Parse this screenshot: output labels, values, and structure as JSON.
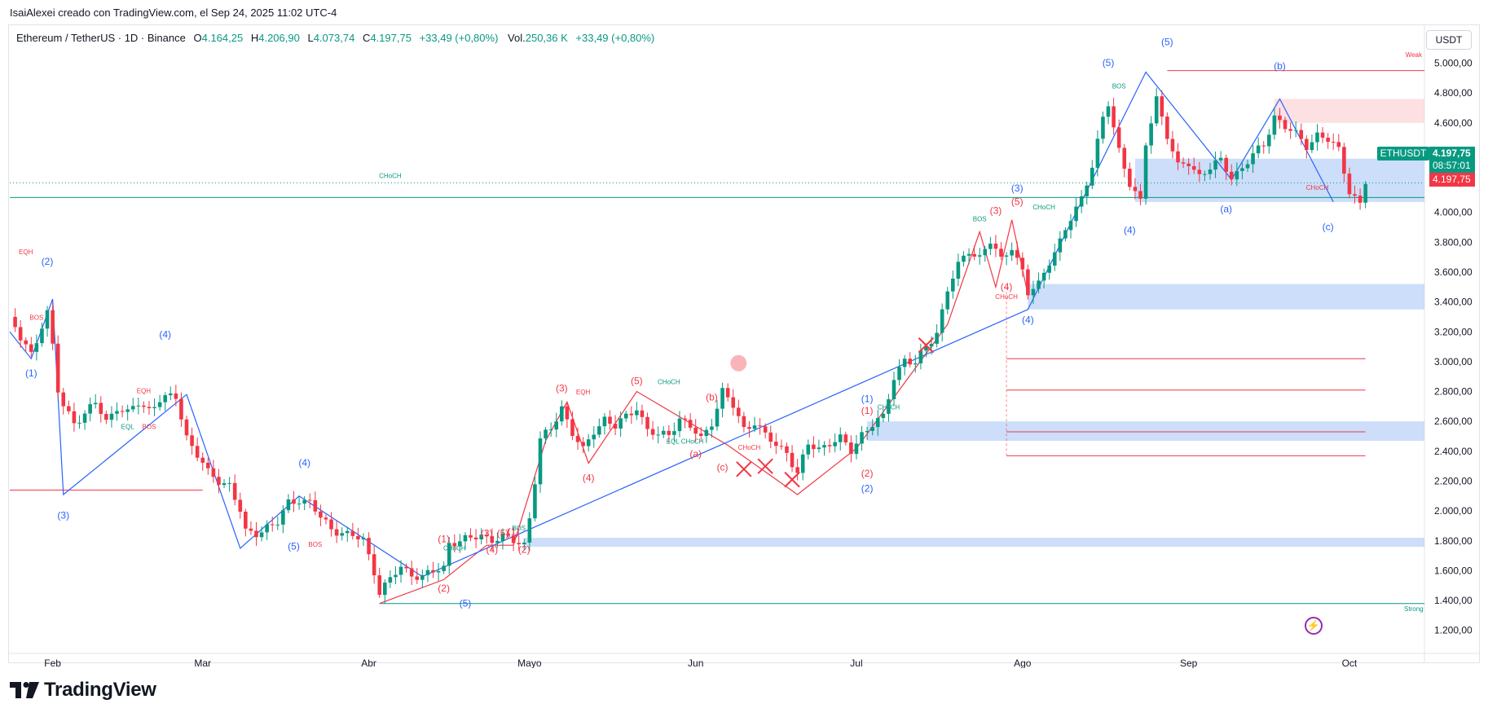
{
  "header": {
    "publish_line": "IsaiAlexei creado con TradingView.com, el Sep 24, 2025 11:02 UTC-4"
  },
  "legend": {
    "symbol_line": "Ethereum / TetherUS · 1D · Binance",
    "open_label": "O",
    "open": "4.164,25",
    "high_label": "H",
    "high": "4.206,90",
    "low_label": "L",
    "low": "4.073,74",
    "close_label": "C",
    "close": "4.197,75",
    "change": "+33,49 (+0,80%)",
    "volume_label": "Vol.",
    "volume": "250,36 K",
    "volume_change": "+33,49 (+0,80%)"
  },
  "currency": "USDT",
  "price_tags": {
    "symbol": "ETHUSDT",
    "price": "4.197,75",
    "countdown": "08:57:01",
    "close": "4.197,75"
  },
  "footer": {
    "brand": "TradingView"
  },
  "colors": {
    "up": "#089981",
    "down": "#f23645",
    "wave_blue": "#2962ff",
    "wave_red": "#f23645",
    "zone_blue": "#bbd3f7",
    "zone_red": "#fbd5d8"
  },
  "chart_data": {
    "type": "candlestick",
    "title": "Ethereum / TetherUS · 1D · Binance",
    "ylim": [
      1100,
      5150
    ],
    "yticks": [
      1200,
      1400,
      1600,
      1800,
      2000,
      2200,
      2400,
      2600,
      2800,
      3000,
      3200,
      3400,
      3600,
      3800,
      4000,
      4200,
      4400,
      4600,
      4800,
      5000
    ],
    "ytick_labels": [
      "1.200,00",
      "1.400,00",
      "1.600,00",
      "1.800,00",
      "2.000,00",
      "2.200,00",
      "2.400,00",
      "2.600,00",
      "2.800,00",
      "3.000,00",
      "3.200,00",
      "3.400,00",
      "3.600,00",
      "3.800,00",
      "4.000,00",
      "4.200,00",
      "4.400,00",
      "4.600,00",
      "4.800,00",
      "5.000,00"
    ],
    "xtick_labels": [
      {
        "day": 20,
        "label": "Feb"
      },
      {
        "day": 48,
        "label": "Mar"
      },
      {
        "day": 79,
        "label": "Abr"
      },
      {
        "day": 109,
        "label": "Mayo"
      },
      {
        "day": 140,
        "label": "Jun"
      },
      {
        "day": 170,
        "label": "Jul"
      },
      {
        "day": 201,
        "label": "Ago"
      },
      {
        "day": 232,
        "label": "Sep"
      },
      {
        "day": 262,
        "label": "Oct"
      }
    ],
    "x_range_days": [
      12,
      276
    ],
    "price_points": [
      [
        12,
        3300
      ],
      [
        14,
        3150
      ],
      [
        16,
        3050
      ],
      [
        18,
        3250
      ],
      [
        19,
        3330
      ],
      [
        20,
        3100
      ],
      [
        21,
        2800
      ],
      [
        22,
        2700
      ],
      [
        24,
        2600
      ],
      [
        26,
        2650
      ],
      [
        28,
        2720
      ],
      [
        30,
        2600
      ],
      [
        32,
        2700
      ],
      [
        34,
        2650
      ],
      [
        36,
        2720
      ],
      [
        38,
        2680
      ],
      [
        40,
        2750
      ],
      [
        43,
        2760
      ],
      [
        45,
        2500
      ],
      [
        47,
        2380
      ],
      [
        49,
        2250
      ],
      [
        51,
        2200
      ],
      [
        53,
        2180
      ],
      [
        55,
        2000
      ],
      [
        56,
        1850
      ],
      [
        58,
        1850
      ],
      [
        60,
        1900
      ],
      [
        62,
        1920
      ],
      [
        64,
        2050
      ],
      [
        66,
        2080
      ],
      [
        68,
        2060
      ],
      [
        70,
        1950
      ],
      [
        72,
        1880
      ],
      [
        74,
        1860
      ],
      [
        76,
        1830
      ],
      [
        78,
        1800
      ],
      [
        80,
        1600
      ],
      [
        81,
        1460
      ],
      [
        83,
        1540
      ],
      [
        85,
        1620
      ],
      [
        87,
        1580
      ],
      [
        89,
        1560
      ],
      [
        91,
        1590
      ],
      [
        93,
        1620
      ],
      [
        94,
        1790
      ],
      [
        96,
        1800
      ],
      [
        98,
        1810
      ],
      [
        100,
        1840
      ],
      [
        102,
        1810
      ],
      [
        104,
        1820
      ],
      [
        106,
        1800
      ],
      [
        108,
        1780
      ],
      [
        109,
        1960
      ],
      [
        110,
        2200
      ],
      [
        111,
        2470
      ],
      [
        113,
        2550
      ],
      [
        115,
        2700
      ],
      [
        117,
        2520
      ],
      [
        119,
        2400
      ],
      [
        121,
        2540
      ],
      [
        123,
        2620
      ],
      [
        125,
        2560
      ],
      [
        127,
        2630
      ],
      [
        129,
        2700
      ],
      [
        131,
        2540
      ],
      [
        133,
        2500
      ],
      [
        135,
        2520
      ],
      [
        137,
        2620
      ],
      [
        139,
        2560
      ],
      [
        141,
        2480
      ],
      [
        143,
        2600
      ],
      [
        145,
        2800
      ],
      [
        147,
        2700
      ],
      [
        149,
        2550
      ],
      [
        151,
        2600
      ],
      [
        153,
        2500
      ],
      [
        155,
        2440
      ],
      [
        157,
        2400
      ],
      [
        159,
        2250
      ],
      [
        161,
        2440
      ],
      [
        163,
        2420
      ],
      [
        165,
        2460
      ],
      [
        167,
        2480
      ],
      [
        169,
        2400
      ],
      [
        171,
        2520
      ],
      [
        173,
        2580
      ],
      [
        175,
        2620
      ],
      [
        177,
        2900
      ],
      [
        179,
        3020
      ],
      [
        181,
        2980
      ],
      [
        183,
        3100
      ],
      [
        185,
        3200
      ],
      [
        187,
        3480
      ],
      [
        189,
        3640
      ],
      [
        191,
        3750
      ],
      [
        193,
        3700
      ],
      [
        195,
        3800
      ],
      [
        197,
        3680
      ],
      [
        199,
        3780
      ],
      [
        201,
        3600
      ],
      [
        202,
        3450
      ],
      [
        204,
        3520
      ],
      [
        206,
        3680
      ],
      [
        208,
        3800
      ],
      [
        210,
        3950
      ],
      [
        212,
        4100
      ],
      [
        214,
        4320
      ],
      [
        216,
        4620
      ],
      [
        217,
        4720
      ],
      [
        219,
        4420
      ],
      [
        221,
        4200
      ],
      [
        223,
        4060
      ],
      [
        224,
        4450
      ],
      [
        226,
        4770
      ],
      [
        228,
        4520
      ],
      [
        230,
        4300
      ],
      [
        232,
        4330
      ],
      [
        234,
        4250
      ],
      [
        236,
        4300
      ],
      [
        238,
        4340
      ],
      [
        240,
        4240
      ],
      [
        242,
        4300
      ],
      [
        244,
        4380
      ],
      [
        246,
        4450
      ],
      [
        248,
        4650
      ],
      [
        250,
        4570
      ],
      [
        252,
        4520
      ],
      [
        254,
        4450
      ],
      [
        256,
        4520
      ],
      [
        258,
        4480
      ],
      [
        260,
        4420
      ],
      [
        262,
        4150
      ],
      [
        264,
        4050
      ],
      [
        265,
        4198
      ]
    ],
    "series": [
      {
        "name": "ETHUSDT",
        "last_close": 4197.75,
        "last_open": 4164.25,
        "last_high": 4206.9,
        "last_low": 4073.74
      }
    ],
    "wave_labels_blue": [
      {
        "day": 16,
        "price": 2900,
        "label": "(1)"
      },
      {
        "day": 19,
        "price": 3650,
        "label": "(2)"
      },
      {
        "day": 22,
        "price": 1950,
        "label": "(3)"
      },
      {
        "day": 41,
        "price": 3160,
        "label": "(4)"
      },
      {
        "day": 65,
        "price": 1740,
        "label": "(5)"
      },
      {
        "day": 67,
        "price": 2300,
        "label": "(4)"
      },
      {
        "day": 97,
        "price": 1360,
        "label": "(5)"
      },
      {
        "day": 172,
        "price": 2730,
        "label": "(1)"
      },
      {
        "day": 172,
        "price": 2130,
        "label": "(2)"
      },
      {
        "day": 200,
        "price": 4140,
        "label": "(3)"
      },
      {
        "day": 202,
        "price": 3260,
        "label": "(4)"
      },
      {
        "day": 217,
        "price": 4980,
        "label": "(5)"
      },
      {
        "day": 228,
        "price": 5120,
        "label": "(5)"
      },
      {
        "day": 221,
        "price": 3860,
        "label": "(4)"
      },
      {
        "day": 239,
        "price": 4000,
        "label": "(a)"
      },
      {
        "day": 249,
        "price": 4960,
        "label": "(b)"
      },
      {
        "day": 258,
        "price": 3880,
        "label": "(c)"
      }
    ],
    "wave_labels_red": [
      {
        "day": 93,
        "price": 1790,
        "label": "(1)"
      },
      {
        "day": 93,
        "price": 1460,
        "label": "(2)"
      },
      {
        "day": 101,
        "price": 1830,
        "label": "(3)"
      },
      {
        "day": 102,
        "price": 1720,
        "label": "(4)"
      },
      {
        "day": 104,
        "price": 1830,
        "label": "(5)"
      },
      {
        "day": 106,
        "price": 1840,
        "label": "(1)"
      },
      {
        "day": 108,
        "price": 1720,
        "label": "(2)"
      },
      {
        "day": 115,
        "price": 2800,
        "label": "(3)"
      },
      {
        "day": 120,
        "price": 2200,
        "label": "(4)"
      },
      {
        "day": 129,
        "price": 2850,
        "label": "(5)"
      },
      {
        "day": 140,
        "price": 2360,
        "label": "(a)"
      },
      {
        "day": 143,
        "price": 2740,
        "label": "(b)"
      },
      {
        "day": 145,
        "price": 2270,
        "label": "(c)"
      },
      {
        "day": 172,
        "price": 2650,
        "label": "(1)"
      },
      {
        "day": 172,
        "price": 2230,
        "label": "(2)"
      },
      {
        "day": 196,
        "price": 3990,
        "label": "(3)"
      },
      {
        "day": 198,
        "price": 3480,
        "label": "(4)"
      },
      {
        "day": 200,
        "price": 4050,
        "label": "(5)"
      }
    ],
    "annotations": [
      {
        "day": 15,
        "price": 3720,
        "text": "EQH",
        "color": "red"
      },
      {
        "day": 17,
        "price": 3280,
        "text": "BOS",
        "color": "red"
      },
      {
        "day": 37,
        "price": 2790,
        "text": "EQH",
        "color": "red"
      },
      {
        "day": 34,
        "price": 2550,
        "text": "EQL",
        "color": "green"
      },
      {
        "day": 38,
        "price": 2550,
        "text": "BOS",
        "color": "red"
      },
      {
        "day": 69,
        "price": 1760,
        "text": "BOS",
        "color": "red"
      },
      {
        "day": 95,
        "price": 1735,
        "text": "CHoCH",
        "color": "green"
      },
      {
        "day": 107,
        "price": 1870,
        "text": "BOS",
        "color": "green"
      },
      {
        "day": 119,
        "price": 2780,
        "text": "EQH",
        "color": "red"
      },
      {
        "day": 135,
        "price": 2850,
        "text": "CHoCH",
        "color": "green"
      },
      {
        "day": 138,
        "price": 2450,
        "text": "EQL CHoCH",
        "color": "green"
      },
      {
        "day": 150,
        "price": 2410,
        "text": "CHoCH",
        "color": "red"
      },
      {
        "day": 176,
        "price": 2680,
        "text": "CHoCH",
        "color": "green"
      },
      {
        "day": 83,
        "price": 4230,
        "text": "CHoCH",
        "color": "green"
      },
      {
        "day": 193,
        "price": 3940,
        "text": "BOS",
        "color": "green"
      },
      {
        "day": 205,
        "price": 4020,
        "text": "CHoCH",
        "color": "green"
      },
      {
        "day": 198,
        "price": 3420,
        "text": "CHoCH",
        "color": "red"
      },
      {
        "day": 219,
        "price": 4830,
        "text": "BOS",
        "color": "green"
      },
      {
        "day": 256,
        "price": 4150,
        "text": "CHoCH",
        "color": "red"
      },
      {
        "day": 274,
        "price": 5040,
        "text": "Weak",
        "color": "red"
      },
      {
        "day": 274,
        "price": 1330,
        "text": "Strong",
        "color": "green"
      }
    ],
    "zones": [
      {
        "from_day": 108,
        "to_day": 276,
        "low": 1760,
        "high": 1820,
        "color": "blue"
      },
      {
        "from_day": 202,
        "to_day": 276,
        "low": 3350,
        "high": 3520,
        "color": "blue"
      },
      {
        "from_day": 172,
        "to_day": 276,
        "low": 2470,
        "high": 2600,
        "color": "blue"
      },
      {
        "from_day": 222,
        "to_day": 276,
        "low": 4070,
        "high": 4360,
        "color": "blue"
      },
      {
        "from_day": 248,
        "to_day": 276,
        "low": 4600,
        "high": 4760,
        "color": "red"
      }
    ],
    "levels": [
      {
        "from_day": 12,
        "to_day": 276,
        "price": 4100,
        "color": "green",
        "label": "CHoCH"
      },
      {
        "from_day": 12,
        "to_day": 48,
        "price": 2140,
        "color": "red"
      },
      {
        "from_day": 81,
        "to_day": 276,
        "price": 1380,
        "color": "green",
        "label": "Strong"
      },
      {
        "from_day": 228,
        "to_day": 276,
        "price": 4950,
        "color": "red",
        "label": "Weak"
      },
      {
        "from_day": 198,
        "to_day": 265,
        "price": 3020,
        "color": "red"
      },
      {
        "from_day": 198,
        "to_day": 265,
        "price": 2810,
        "color": "red"
      },
      {
        "from_day": 198,
        "to_day": 265,
        "price": 2530,
        "color": "red"
      },
      {
        "from_day": 198,
        "to_day": 265,
        "price": 2370,
        "color": "red"
      }
    ],
    "blue_path": [
      [
        12,
        3200
      ],
      [
        16,
        3020
      ],
      [
        20,
        3420
      ],
      [
        22,
        2110
      ],
      [
        45,
        2780
      ],
      [
        55,
        1750
      ],
      [
        66,
        2100
      ],
      [
        89,
        1560
      ],
      [
        202,
        3350
      ],
      [
        224,
        4940
      ],
      [
        240,
        4220
      ],
      [
        249,
        4760
      ],
      [
        259,
        4070
      ]
    ],
    "red_path": [
      [
        81,
        1380
      ],
      [
        93,
        1540
      ],
      [
        101,
        1770
      ],
      [
        106,
        1770
      ],
      [
        112,
        2470
      ],
      [
        116,
        2730
      ],
      [
        120,
        2320
      ],
      [
        129,
        2800
      ],
      [
        146,
        2440
      ],
      [
        159,
        2110
      ],
      [
        170,
        2420
      ],
      [
        187,
        3250
      ],
      [
        193,
        3870
      ],
      [
        196,
        3500
      ],
      [
        199,
        3950
      ],
      [
        202,
        3450
      ]
    ],
    "x_marks": [
      {
        "day": 149,
        "price": 2280
      },
      {
        "day": 153,
        "price": 2300
      },
      {
        "day": 158,
        "price": 2210
      },
      {
        "day": 183,
        "price": 3110
      }
    ],
    "circle_marker": {
      "day": 148,
      "price": 2990
    }
  }
}
